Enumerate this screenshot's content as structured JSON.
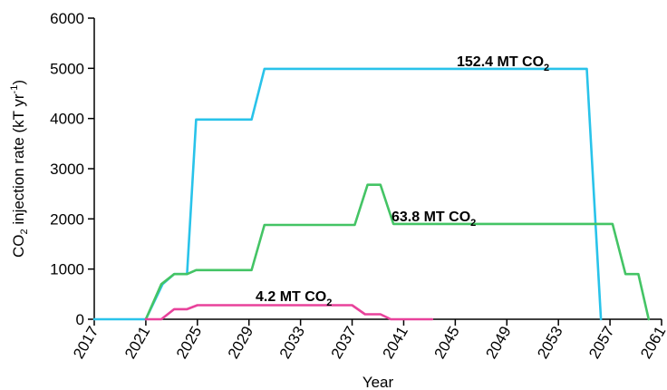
{
  "chart_data": {
    "type": "line",
    "xlabel": "Year",
    "ylabel": {
      "prefix": "CO",
      "sub": "2",
      "middle": " injection rate (kT yr",
      "sup": "-1",
      "suffix": ")"
    },
    "xlim": [
      2017,
      2061
    ],
    "ylim": [
      0,
      6000
    ],
    "x_ticks": [
      2017,
      2021,
      2025,
      2029,
      2033,
      2037,
      2041,
      2045,
      2049,
      2053,
      2057,
      2061
    ],
    "y_ticks": [
      0,
      1000,
      2000,
      3000,
      4000,
      5000,
      6000
    ],
    "grid": false,
    "legend": "none",
    "series": [
      {
        "label": {
          "main": "152.4 MT CO",
          "sub": "2"
        },
        "color": "#29c3ea",
        "points": [
          [
            2017,
            0
          ],
          [
            2021,
            0
          ],
          [
            2022.3,
            700
          ],
          [
            2023.2,
            900
          ],
          [
            2024.2,
            900
          ],
          [
            2024.9,
            3980
          ],
          [
            2029.2,
            3980
          ],
          [
            2030.2,
            4990
          ],
          [
            2055.2,
            4990
          ],
          [
            2056.3,
            0
          ]
        ]
      },
      {
        "label": {
          "main": "63.8 MT CO",
          "sub": "2"
        },
        "color": "#44c465",
        "points": [
          [
            2021,
            0
          ],
          [
            2022.2,
            700
          ],
          [
            2023.2,
            900
          ],
          [
            2024.2,
            900
          ],
          [
            2024.9,
            980
          ],
          [
            2029.2,
            980
          ],
          [
            2030.2,
            1880
          ],
          [
            2037.2,
            1880
          ],
          [
            2038.2,
            2680
          ],
          [
            2039.2,
            2680
          ],
          [
            2040.2,
            1900
          ],
          [
            2057.2,
            1900
          ],
          [
            2058.2,
            900
          ],
          [
            2059.2,
            900
          ],
          [
            2060,
            0
          ]
        ]
      },
      {
        "label": {
          "main": "4.2 MT CO",
          "sub": "2"
        },
        "color": "#e8429b",
        "points": [
          [
            2021,
            0
          ],
          [
            2022.2,
            0
          ],
          [
            2023.2,
            200
          ],
          [
            2024.2,
            200
          ],
          [
            2025,
            280
          ],
          [
            2037,
            280
          ],
          [
            2038,
            100
          ],
          [
            2039.2,
            100
          ],
          [
            2040,
            0
          ],
          [
            2043.2,
            0
          ]
        ]
      }
    ]
  }
}
